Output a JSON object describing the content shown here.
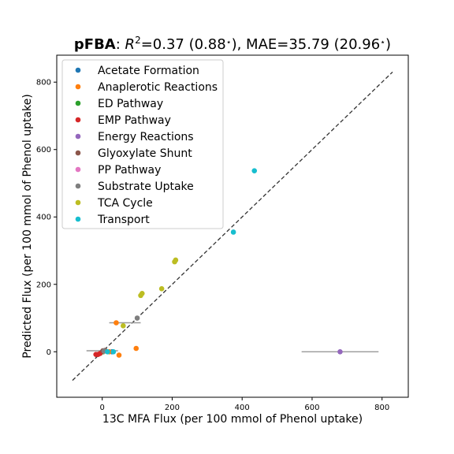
{
  "chart_data": {
    "type": "scatter",
    "title": {
      "method": "pFBA",
      "r2_label": "R",
      "r2_exp": "2",
      "r2_value": "=0.37 (0.88",
      "star": "⋆",
      "mae_text": "), MAE=35.79 (20.96",
      "tail": ")"
    },
    "xlabel": "13C MFA Flux (per 100 mmol of Phenol uptake)",
    "ylabel": "Predicted Flux (per 100 mmol of Phenol uptake)",
    "xlim": [
      -130,
      875
    ],
    "ylim": [
      -135,
      880
    ],
    "xticks": [
      0,
      200,
      400,
      600,
      800
    ],
    "yticks": [
      0,
      200,
      400,
      600,
      800
    ],
    "grid": false,
    "legend_position": "top-left",
    "identity_line": {
      "from": -85,
      "to": 830,
      "style": "dashed",
      "color": "#333333"
    },
    "error_bar_color": "#999999",
    "series": [
      {
        "name": "Acetate Formation",
        "color": "#1f77b4",
        "points": [
          {
            "x": 0,
            "y": 0
          },
          {
            "x": 28,
            "y": 0
          }
        ]
      },
      {
        "name": "Anaplerotic Reactions",
        "color": "#ff7f0e",
        "points": [
          {
            "x": 40,
            "y": 86,
            "xerr_lo": 20,
            "xerr_hi": 110
          },
          {
            "x": 97,
            "y": 10
          },
          {
            "x": 48,
            "y": -10
          },
          {
            "x": 20,
            "y": 0
          }
        ]
      },
      {
        "name": "ED Pathway",
        "color": "#2ca02c",
        "points": [
          {
            "x": 3,
            "y": 0
          }
        ]
      },
      {
        "name": "EMP Pathway",
        "color": "#d62728",
        "points": [
          {
            "x": -18,
            "y": -8
          },
          {
            "x": -12,
            "y": -8
          },
          {
            "x": -6,
            "y": -5
          }
        ]
      },
      {
        "name": "Energy Reactions",
        "color": "#9467bd",
        "points": [
          {
            "x": 680,
            "y": 0,
            "xerr_lo": 570,
            "xerr_hi": 790
          }
        ]
      },
      {
        "name": "Glyoxylate Shunt",
        "color": "#8c564b",
        "points": [
          {
            "x": 2,
            "y": 3
          },
          {
            "x": 8,
            "y": 4
          }
        ]
      },
      {
        "name": "PP Pathway",
        "color": "#e377c2",
        "points": [
          {
            "x": 6,
            "y": 2
          }
        ]
      },
      {
        "name": "Substrate Uptake",
        "color": "#7f7f7f",
        "points": [
          {
            "x": 100,
            "y": 100
          },
          {
            "x": 6,
            "y": 3,
            "xerr_lo": -45,
            "xerr_hi": 45
          }
        ]
      },
      {
        "name": "TCA Cycle",
        "color": "#bcbd22",
        "points": [
          {
            "x": 60,
            "y": 77
          },
          {
            "x": 110,
            "y": 167
          },
          {
            "x": 114,
            "y": 173
          },
          {
            "x": 170,
            "y": 187
          },
          {
            "x": 207,
            "y": 267
          },
          {
            "x": 210,
            "y": 272
          }
        ]
      },
      {
        "name": "Transport",
        "color": "#17becf",
        "points": [
          {
            "x": 375,
            "y": 355
          },
          {
            "x": 435,
            "y": 537
          },
          {
            "x": 15,
            "y": 0
          },
          {
            "x": 32,
            "y": 0
          }
        ]
      }
    ]
  }
}
